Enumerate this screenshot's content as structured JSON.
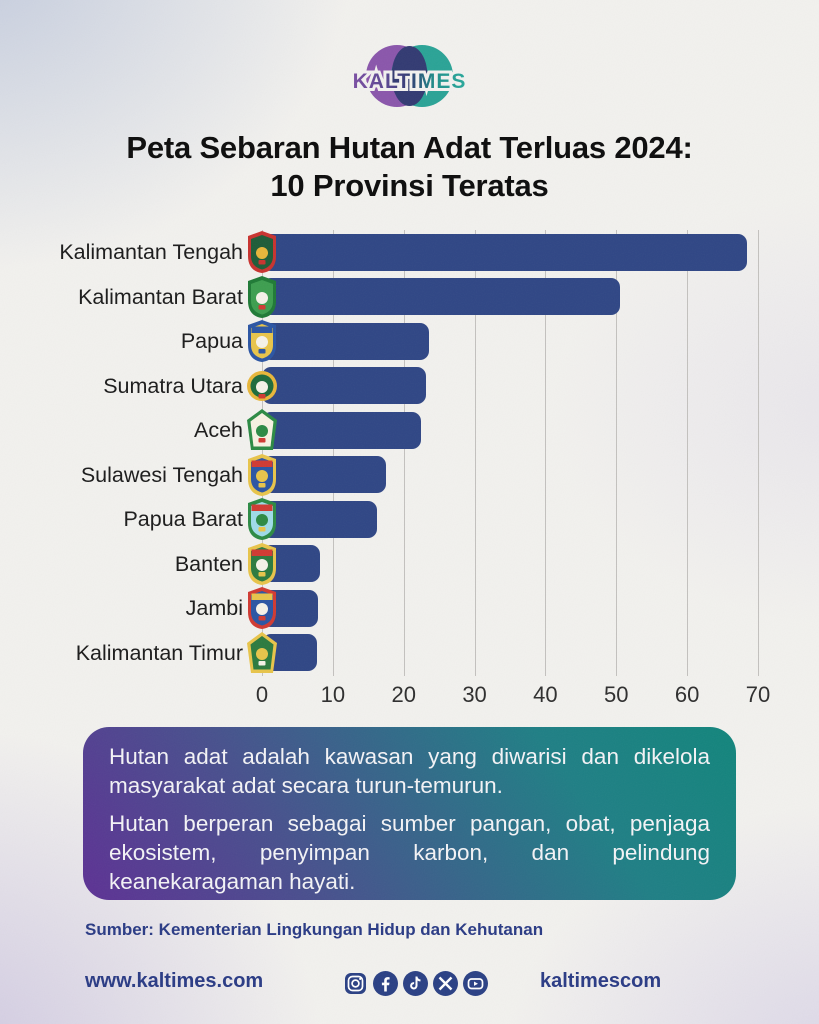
{
  "logo": {
    "text": "KALTIMES",
    "colors": {
      "purple": "#8a56ab",
      "teal": "#2aa396",
      "dark": "#323a72"
    }
  },
  "title": {
    "line1": "Peta Sebaran Hutan Adat Terluas 2024:",
    "line2": "10 Provinsi Teratas"
  },
  "chart_data": {
    "type": "bar",
    "orientation": "horizontal",
    "title": "Peta Sebaran Hutan Adat Terluas 2024: 10 Provinsi Teratas",
    "categories": [
      "Kalimantan Tengah",
      "Kalimantan Barat",
      "Papua",
      "Sumatra Utara",
      "Aceh",
      "Sulawesi Tengah",
      "Papua Barat",
      "Banten",
      "Jambi",
      "Kalimantan Timur"
    ],
    "values": [
      68.4,
      50.5,
      23.6,
      23.1,
      22.4,
      17.5,
      16.2,
      8.2,
      7.9,
      7.8
    ],
    "x_ticks": [
      0,
      10,
      20,
      30,
      40,
      50,
      60,
      70
    ],
    "xlim": [
      0,
      70
    ],
    "xlabel": "",
    "ylabel": "",
    "grid": true,
    "legend": false,
    "bar_color": "#2f4685",
    "emblems": [
      {
        "name": "kalimantan-tengah-emblem",
        "shape": "shield",
        "border": "#c8332f",
        "body": "#1e5c38",
        "band": null,
        "accent": "#e8b63a",
        "detail": "#c8332f"
      },
      {
        "name": "kalimantan-barat-emblem",
        "shape": "shield",
        "border": "#1f7a36",
        "body": "#3d9e4f",
        "band": null,
        "accent": "#f5f2e8",
        "detail": "#d03a32"
      },
      {
        "name": "papua-emblem",
        "shape": "shield",
        "border": "#2b55a3",
        "body": "#e8c44a",
        "band": "#2b55a3",
        "accent": "#f5f2e8",
        "detail": "#2b55a3"
      },
      {
        "name": "sumatra-utara-emblem",
        "shape": "round",
        "border": "#e8b63a",
        "body": "#1e6b3c",
        "band": null,
        "accent": "#f5f2e8",
        "detail": "#d03a32"
      },
      {
        "name": "aceh-emblem",
        "shape": "pentagon",
        "border": "#2c8a44",
        "body": "#f7f2e2",
        "band": null,
        "accent": "#2c8a44",
        "detail": "#d03a32"
      },
      {
        "name": "sulawesi-tengah-emblem",
        "shape": "shield",
        "border": "#e8c44a",
        "body": "#2b55a3",
        "band": "#d03a32",
        "accent": "#e8c44a",
        "detail": "#e8c44a"
      },
      {
        "name": "papua-barat-emblem",
        "shape": "shield",
        "border": "#2c8a44",
        "body": "#9fdbe8",
        "band": "#d03a32",
        "accent": "#2c8a44",
        "detail": "#e8c44a"
      },
      {
        "name": "banten-emblem",
        "shape": "shield",
        "border": "#e8c44a",
        "body": "#2c7a3f",
        "band": "#d03a32",
        "accent": "#f5f2e8",
        "detail": "#e8c44a"
      },
      {
        "name": "jambi-emblem",
        "shape": "shield",
        "border": "#d03a32",
        "body": "#2b55a3",
        "band": "#e8c44a",
        "accent": "#f5f2e8",
        "detail": "#d03a32"
      },
      {
        "name": "kalimantan-timur-emblem",
        "shape": "pentagon",
        "border": "#e8c44a",
        "body": "#2c7a3f",
        "band": null,
        "accent": "#e8c44a",
        "detail": "#f5f2e8"
      }
    ]
  },
  "info_box": {
    "paragraph1": "Hutan adat adalah kawasan yang diwarisi dan dikelola masyarakat adat secara turun-temurun.",
    "paragraph2": "Hutan berperan sebagai sumber pangan, obat, penjaga ekosistem, penyimpan karbon, dan pelindung keanekaragaman hayati.",
    "gradient_colors": [
      "#5d3194",
      "#47518d",
      "#1f7f85",
      "#12857c"
    ]
  },
  "source": {
    "label": "Sumber: Kementerian Lingkungan Hidup dan Kehutanan"
  },
  "footer": {
    "website": "www.kaltimes.com",
    "handle": "kaltimescom",
    "social_icons": [
      "instagram-icon",
      "facebook-icon",
      "tiktok-icon",
      "x-icon",
      "youtube-icon"
    ],
    "icon_color": "#2a4084",
    "text_color": "#2a3b85"
  }
}
